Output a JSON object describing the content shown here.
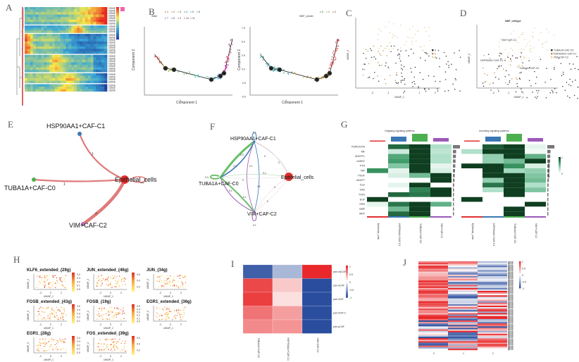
{
  "panel_labels": [
    "A",
    "B",
    "C",
    "D",
    "E",
    "F",
    "G",
    "H",
    "I",
    "J"
  ],
  "chart_data": [
    {
      "id": "A",
      "type": "heatmap",
      "title": "",
      "description": "Pseudotime gene expression heatmap with hierarchical clustering, 6 clusters",
      "colorbar": {
        "min": -3,
        "max": 3,
        "colors": [
          "#1f3f99",
          "#3aa8d8",
          "#f5e84a",
          "#e8261f"
        ]
      },
      "clusters": [
        {
          "rows": 7,
          "pattern": "high-late"
        },
        {
          "rows": 3,
          "pattern": "mid-peak"
        },
        {
          "rows": 8,
          "pattern": "early-high"
        },
        {
          "rows": 7,
          "pattern": "mid"
        },
        {
          "rows": 4,
          "pattern": "early-low-late"
        },
        {
          "rows": 3,
          "pattern": "mid-late"
        }
      ]
    },
    {
      "id": "B1",
      "type": "scatter",
      "legend_title": "State",
      "legend_items": [
        "1",
        "2",
        "3",
        "4",
        "5",
        "6",
        "7",
        "8",
        "9",
        "10",
        "11"
      ],
      "xlabel": "Component 1",
      "ylabel": "Component 2",
      "trajectory": [
        [
          -3.2,
          1.5
        ],
        [
          -2.5,
          0.1
        ],
        [
          -1.8,
          -0.2
        ],
        [
          1.2,
          -2.2
        ],
        [
          2.0,
          -1.5
        ],
        [
          2.4,
          -1.0
        ],
        [
          2.6,
          1.5
        ],
        [
          2.9,
          5.5
        ]
      ],
      "branch_points": [
        [
          -2.5,
          0.1
        ],
        [
          -1.8,
          -0.2
        ],
        [
          1.2,
          -2.2
        ],
        [
          2.0,
          -1.5
        ],
        [
          2.4,
          -1.0
        ]
      ]
    },
    {
      "id": "B2",
      "type": "scatter",
      "legend_title": "NMF_cluster",
      "legend_items": [
        "0",
        "1",
        "2"
      ],
      "xlabel": "Component 1",
      "ylabel": "Component 2",
      "yticks": [
        "7.5",
        "5.0",
        "2.5",
        "0.0",
        "-2.5",
        "-5.0"
      ]
    },
    {
      "id": "C",
      "type": "scatter",
      "xlabel": "UMAP_1",
      "ylabel": "UMAP_2",
      "xticks": [
        "-2",
        "-1",
        "0",
        "1",
        "2"
      ],
      "legend_items": [
        "0",
        "1",
        "2"
      ],
      "colors": [
        "#333333",
        "#c8934a",
        "#e8cfa0"
      ]
    },
    {
      "id": "D",
      "type": "scatter",
      "title": "NMF_celltype",
      "xlabel": "UMAP_1",
      "ylabel": "UMAP_2",
      "xticks": [
        "-2",
        "-1",
        "0",
        "1",
        "2"
      ],
      "legend_items": [
        "TUBA1A+CAF-C0",
        "HSP90AA1+CAF-C1",
        "VIM+CAF-C2"
      ],
      "annotations": [
        "VIM+CAF-C2",
        "HSP90AA1+CAF-C1",
        "TUBA1A+CAF-C0"
      ]
    },
    {
      "id": "E",
      "type": "network",
      "nodes": [
        {
          "name": "HSP90AA1+CAF-C1",
          "color": "#3a78b5"
        },
        {
          "name": "TUBA1A+CAF-C0",
          "color": "#4caf50"
        },
        {
          "name": "VIM+CAF-C2",
          "color": "#c070c0"
        },
        {
          "name": "Epithelial_cells",
          "color": "#e03030"
        }
      ],
      "edges": [
        {
          "from": "HSP90AA1+CAF-C1",
          "to": "Epithelial_cells",
          "weight": 1
        },
        {
          "from": "TUBA1A+CAF-C0",
          "to": "Epithelial_cells",
          "weight": 1
        },
        {
          "from": "VIM+CAF-C2",
          "to": "Epithelial_cells",
          "weight": 2
        }
      ]
    },
    {
      "id": "F",
      "type": "network",
      "nodes": [
        "HSP90AA1+CAF-C1",
        "TUBA1A+CAF-C0",
        "VIM+CAF-C2",
        "Epithelial_cells"
      ],
      "edge_labels": [
        "0.1",
        "0.3",
        "0.2",
        "0.1",
        "0",
        "0",
        "0.1",
        "0.3",
        "0",
        "0.1",
        "0.1",
        "0.1",
        "0",
        "0",
        "0.1"
      ]
    },
    {
      "id": "G",
      "type": "heatmap",
      "subtitles": [
        "Outgoing signaling patterns",
        "Incoming signaling patterns"
      ],
      "rows": [
        "PERIOSTIN",
        "MK",
        "ANGPTL",
        "ncWNT",
        "PTN",
        "MIF",
        "PDGF",
        "ANGPT",
        "FGF",
        "GAS",
        "TGFb",
        "EGF",
        "GRN",
        "BMP",
        "WNT"
      ],
      "columns": [
        "Epithelial_cells",
        "HSP90AA1+CAF-C1",
        "TUBA1A+CAF-C0",
        "VIM+CAF-C2"
      ],
      "column_colors": [
        "#e03030",
        "#3a78b5",
        "#4caf50",
        "#9b59b6"
      ],
      "legend_title": "Relative strength",
      "legend_range": [
        "0",
        "1"
      ],
      "outgoing": [
        [
          0,
          0.85,
          1,
          0.3
        ],
        [
          0,
          0.2,
          1,
          0.25
        ],
        [
          0,
          0.6,
          1,
          0.3
        ],
        [
          0,
          0.65,
          1,
          0.3
        ],
        [
          0,
          0.45,
          1,
          0.1
        ],
        [
          0.7,
          0.1,
          1,
          0.15
        ],
        [
          0,
          0.15,
          0.5,
          1
        ],
        [
          0,
          0,
          0,
          1
        ],
        [
          0,
          0.1,
          1,
          0
        ],
        [
          0,
          0,
          0.75,
          1
        ],
        [
          0,
          0.85,
          0.8,
          1
        ],
        [
          1,
          0,
          0,
          0
        ],
        [
          0.1,
          0.8,
          1,
          0.55
        ],
        [
          0,
          0.5,
          1,
          0
        ],
        [
          0,
          0.85,
          1,
          0
        ]
      ],
      "incoming": [
        [
          0,
          0.9,
          1,
          0.1
        ],
        [
          0.3,
          1,
          1,
          0.05
        ],
        [
          0,
          0.4,
          1,
          0.55
        ],
        [
          0,
          0.4,
          0.5,
          1
        ],
        [
          1,
          1,
          0.7,
          0.15
        ],
        [
          0,
          1,
          0.35,
          0.4
        ],
        [
          0,
          1,
          1,
          0.45
        ],
        [
          0,
          0.4,
          1,
          0.5
        ],
        [
          0,
          0.8,
          1,
          0.3
        ],
        [
          0,
          0.3,
          1,
          0.45
        ],
        [
          0,
          0,
          1,
          0
        ],
        [
          1,
          0,
          0,
          0
        ],
        [
          0,
          0,
          0,
          1
        ],
        [
          0,
          0,
          1,
          0
        ],
        [
          0,
          0,
          1,
          0
        ]
      ]
    },
    {
      "id": "H",
      "type": "scatter",
      "xlabel": "UMAP_1",
      "ylabel": "UMAP_2",
      "subplots": [
        {
          "title": "KLF6_extended_(29g)",
          "scale": [
            "0.4",
            "0.3",
            "0.2",
            "0.1",
            "0.0"
          ]
        },
        {
          "title": "JUN_extended_(46g)",
          "scale": [
            "0.6",
            "0.4",
            "0.2"
          ]
        },
        {
          "title": "JUN_(34g)",
          "scale": [
            "0.6",
            "0.4",
            "0.2"
          ]
        },
        {
          "title": "FOSB_extended_(43g)",
          "scale": [
            "0.5",
            "0.4",
            "0.3",
            "0.2",
            "0.1"
          ]
        },
        {
          "title": "FOSB_(19g)",
          "scale": [
            "0.5",
            "0.4",
            "0.3",
            "0.2",
            "0.1",
            "0.0"
          ]
        },
        {
          "title": "EGR1_extended_(36g)",
          "scale": [
            "0.4",
            "0.3",
            "0.2",
            "0.1",
            "0.0"
          ]
        },
        {
          "title": "EGR1_(28g)",
          "scale": [
            "0.4",
            "0.3",
            "0.2",
            "0.1",
            "0.0"
          ]
        },
        {
          "title": "FOS_extended_(39g)",
          "scale": [
            "0.6",
            "0.4",
            "0.2"
          ]
        }
      ],
      "xticks": [
        "-2",
        "0",
        "2"
      ]
    },
    {
      "id": "I",
      "type": "heatmap",
      "rows": [
        "pan-myCAF",
        "pan-dCAF",
        "pan-iCAF",
        "pan-iCAF-2",
        "pan-pCAF"
      ],
      "columns": [
        "TUBA1A+CAF-C0",
        "HSP90AA1+CAF-C1",
        "VIM+CAF-C2"
      ],
      "values": [
        [
          -0.9,
          -0.4,
          1
        ],
        [
          0.85,
          0.25,
          -1
        ],
        [
          0.9,
          0.15,
          -1
        ],
        [
          0.65,
          0.45,
          -1
        ],
        [
          0.55,
          0.5,
          -1
        ]
      ],
      "colorbar": {
        "min": -1,
        "max": 1,
        "ticks": [
          "1",
          "0.5",
          "0",
          "-0.5",
          "-1"
        ]
      }
    },
    {
      "id": "J",
      "type": "heatmap",
      "columns": [
        "0",
        "1",
        "2"
      ],
      "row_count": 60,
      "colorbar": {
        "min": -1,
        "max": 1,
        "ticks": [
          "1",
          "0.5",
          "0",
          "-0.5",
          "-1"
        ]
      }
    }
  ]
}
